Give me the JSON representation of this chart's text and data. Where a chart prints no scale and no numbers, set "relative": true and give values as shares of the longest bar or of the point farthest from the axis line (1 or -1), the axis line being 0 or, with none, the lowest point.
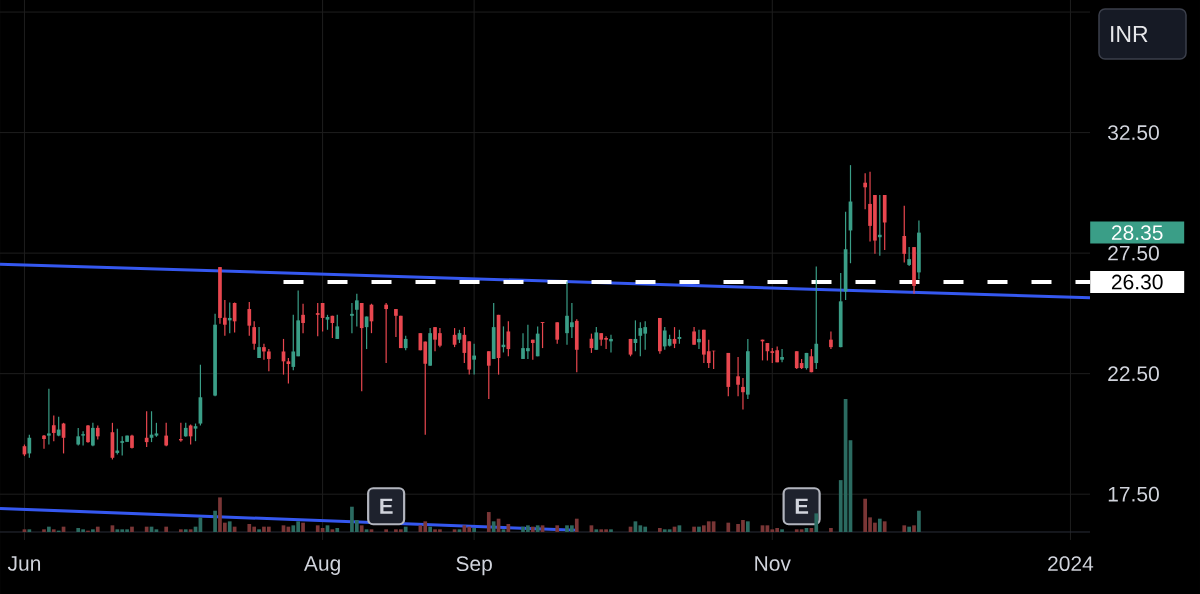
{
  "chart_data": [
    {
      "type": "candlestick",
      "x": [
        "2023-06-01",
        "2023-06-02",
        "2023-06-05",
        "2023-06-06",
        "2023-06-07",
        "2023-06-08",
        "2023-06-09",
        "2023-06-12",
        "2023-06-13",
        "2023-06-14",
        "2023-06-15",
        "2023-06-16",
        "2023-06-19",
        "2023-06-20",
        "2023-06-21",
        "2023-06-22",
        "2023-06-23",
        "2023-06-26",
        "2023-06-27",
        "2023-06-28",
        "2023-06-30",
        "2023-07-03",
        "2023-07-04",
        "2023-07-05",
        "2023-07-06",
        "2023-07-07",
        "2023-07-10",
        "2023-07-11",
        "2023-07-12",
        "2023-07-13",
        "2023-07-14",
        "2023-07-17",
        "2023-07-18",
        "2023-07-19",
        "2023-07-20",
        "2023-07-21",
        "2023-07-24",
        "2023-07-25",
        "2023-07-26",
        "2023-07-27",
        "2023-07-28",
        "2023-07-31",
        "2023-08-01",
        "2023-08-02",
        "2023-08-03",
        "2023-08-04",
        "2023-08-07",
        "2023-08-08",
        "2023-08-09",
        "2023-08-10",
        "2023-08-11",
        "2023-08-14",
        "2023-08-16",
        "2023-08-17",
        "2023-08-18",
        "2023-08-21",
        "2023-08-22",
        "2023-08-23",
        "2023-08-24",
        "2023-08-25",
        "2023-08-28",
        "2023-08-29",
        "2023-08-30",
        "2023-08-31",
        "2023-09-01",
        "2023-09-04",
        "2023-09-05",
        "2023-09-06",
        "2023-09-07",
        "2023-09-08",
        "2023-09-11",
        "2023-09-12",
        "2023-09-13",
        "2023-09-14",
        "2023-09-15",
        "2023-09-18",
        "2023-09-20",
        "2023-09-21",
        "2023-09-22",
        "2023-09-25",
        "2023-09-26",
        "2023-09-27",
        "2023-09-28",
        "2023-09-29",
        "2023-10-03",
        "2023-10-04",
        "2023-10-05",
        "2023-10-06",
        "2023-10-09",
        "2023-10-10",
        "2023-10-11",
        "2023-10-12",
        "2023-10-13",
        "2023-10-16",
        "2023-10-17",
        "2023-10-18",
        "2023-10-19",
        "2023-10-20",
        "2023-10-23",
        "2023-10-25",
        "2023-10-26",
        "2023-10-27",
        "2023-10-30",
        "2023-10-31",
        "2023-11-01",
        "2023-11-02",
        "2023-11-03",
        "2023-11-06",
        "2023-11-07",
        "2023-11-08",
        "2023-11-09",
        "2023-11-10",
        "2023-11-13",
        "2023-11-15",
        "2023-11-16",
        "2023-11-17",
        "2023-11-20",
        "2023-11-21",
        "2023-11-22",
        "2023-11-23",
        "2023-11-24",
        "2023-11-28",
        "2023-11-29",
        "2023-11-30",
        "2023-12-01"
      ],
      "ohlc": [
        [
          19.49,
          19.56,
          19.08,
          19.15
        ],
        [
          19.19,
          19.97,
          19.01,
          19.84
        ],
        [
          19.93,
          19.96,
          19.38,
          19.79
        ],
        [
          19.93,
          21.87,
          19.56,
          20.02
        ],
        [
          20.36,
          20.76,
          19.7,
          20.04
        ],
        [
          19.93,
          20.71,
          19.9,
          20.18
        ],
        [
          20.43,
          20.46,
          19.19,
          19.84
        ],
        [
          19.56,
          20.25,
          19.52,
          19.9
        ],
        [
          19.93,
          20.11,
          19.52,
          19.99
        ],
        [
          20.35,
          20.37,
          19.63,
          19.66
        ],
        [
          19.52,
          20.46,
          19.49,
          20.25
        ],
        [
          20.25,
          20.35,
          19.77,
          19.9
        ],
        [
          20.07,
          20.46,
          18.94,
          19.01
        ],
        [
          19.21,
          20.21,
          19.15,
          19.31
        ],
        [
          19.63,
          19.9,
          19.1,
          19.7
        ],
        [
          19.67,
          19.93,
          19.67,
          19.93
        ],
        [
          19.93,
          19.97,
          19.39,
          19.42
        ],
        [
          19.84,
          20.94,
          19.46,
          19.66
        ],
        [
          19.84,
          20.94,
          19.66,
          19.97
        ],
        [
          19.93,
          20.46,
          19.88,
          20.02
        ],
        [
          19.93,
          20.46,
          19.49,
          19.52
        ],
        [
          19.79,
          20.46,
          19.67,
          19.73
        ],
        [
          19.9,
          20.46,
          19.88,
          20.25
        ],
        [
          20.35,
          20.39,
          19.56,
          19.9
        ],
        [
          20.22,
          20.43,
          19.7,
          20.32
        ],
        [
          20.43,
          22.87,
          20.35,
          21.52
        ],
        [
          21.59,
          24.98,
          21.56,
          24.53
        ],
        [
          26.92,
          26.92,
          24.57,
          24.81
        ],
        [
          24.82,
          25.56,
          24.07,
          24.53
        ],
        [
          24.71,
          25.45,
          24.18,
          24.81
        ],
        [
          25.43,
          25.45,
          24.21,
          24.67
        ],
        [
          25.18,
          25.47,
          24.07,
          24.49
        ],
        [
          24.43,
          24.67,
          23.49,
          23.74
        ],
        [
          23.15,
          24.43,
          23.15,
          23.6
        ],
        [
          23.6,
          23.74,
          23.08,
          23.42
        ],
        [
          23.42,
          23.52,
          22.6,
          23.11
        ],
        [
          23.42,
          23.94,
          22.46,
          23.01
        ],
        [
          23.01,
          23.15,
          22.09,
          22.9
        ],
        [
          22.78,
          24.94,
          22.64,
          23.42
        ],
        [
          23.22,
          25.95,
          23.22,
          24.71
        ],
        [
          24.94,
          25.4,
          24.18,
          24.6
        ],
        [
          25.01,
          25.43,
          24.05,
          24.94
        ],
        [
          25.43,
          25.43,
          24.25,
          24.81
        ],
        [
          24.74,
          24.94,
          24.32,
          24.85
        ],
        [
          24.9,
          24.9,
          23.98,
          24.6
        ],
        [
          23.94,
          24.94,
          23.94,
          24.46
        ],
        [
          24.9,
          25.43,
          24.18,
          24.98
        ],
        [
          25.15,
          25.81,
          24.46,
          25.54
        ],
        [
          25.43,
          25.43,
          21.77,
          24.39
        ],
        [
          24.43,
          24.87,
          23.52,
          24.87
        ],
        [
          25.36,
          25.4,
          24.18,
          24.67
        ],
        [
          25.36,
          25.43,
          22.94,
          25.18
        ],
        [
          25.18,
          25.18,
          24.02,
          24.9
        ],
        [
          24.9,
          24.9,
          23.56,
          23.56
        ],
        [
          23.56,
          24.07,
          23.47,
          23.94
        ],
        [
          24.18,
          24.18,
          23.47,
          23.47
        ],
        [
          23.83,
          23.83,
          19.97,
          22.91
        ],
        [
          22.83,
          24.39,
          22.83,
          24.18
        ],
        [
          24.43,
          24.43,
          23.43,
          23.91
        ],
        [
          24.18,
          24.39,
          23.6,
          23.66
        ],
        [
          24.11,
          24.39,
          23.6,
          23.7
        ],
        [
          23.91,
          24.32,
          23.77,
          24.18
        ],
        [
          24.11,
          24.43,
          22.94,
          23.36
        ],
        [
          23.84,
          23.84,
          22.46,
          22.67
        ],
        [
          23.08,
          23.74,
          22.46,
          23.25
        ],
        [
          23.43,
          23.43,
          21.45,
          22.83
        ],
        [
          23.11,
          25.43,
          23.11,
          24.43
        ],
        [
          24.94,
          24.94,
          22.46,
          23.15
        ],
        [
          23.6,
          24.46,
          23.38,
          23.7
        ],
        [
          24.25,
          24.67,
          23.22,
          23.52
        ],
        [
          23.11,
          24.18,
          23.11,
          23.56
        ],
        [
          23.43,
          24.53,
          23.11,
          23.56
        ],
        [
          23.91,
          23.91,
          23.08,
          23.77
        ],
        [
          23.22,
          24.46,
          23.22,
          24.16
        ],
        [
          24.64,
          24.64,
          23.56,
          24.6
        ],
        [
          24.63,
          24.63,
          23.74,
          23.91
        ],
        [
          24.18,
          26.32,
          23.7,
          24.9
        ],
        [
          24.43,
          25.43,
          23.98,
          24.63
        ],
        [
          24.69,
          24.76,
          22.56,
          23.49
        ],
        [
          23.95,
          24.16,
          23.36,
          23.56
        ],
        [
          23.49,
          24.43,
          23.49,
          24.21
        ],
        [
          24.18,
          24.18,
          23.66,
          23.91
        ],
        [
          23.98,
          24.05,
          23.52,
          23.91
        ],
        [
          23.84,
          24.11,
          23.38,
          23.94
        ],
        [
          23.94,
          23.94,
          23.22,
          23.29
        ],
        [
          23.77,
          24.71,
          23.43,
          23.94
        ],
        [
          24.07,
          24.63,
          23.22,
          24.39
        ],
        [
          24.16,
          24.67,
          23.49,
          24.43
        ],
        [
          24.81,
          24.81,
          23.33,
          23.43
        ],
        [
          23.63,
          24.43,
          23.49,
          24.29
        ],
        [
          23.66,
          24.11,
          23.63,
          23.94
        ],
        [
          23.94,
          24.43,
          23.56,
          23.74
        ],
        [
          23.94,
          24.32,
          23.74,
          24.02
        ],
        [
          24.25,
          24.43,
          23.7,
          23.7
        ],
        [
          23.8,
          24.32,
          23.52,
          23.94
        ],
        [
          24.32,
          24.32,
          22.94,
          23.29
        ],
        [
          23.43,
          23.91,
          22.73,
          22.94
        ],
        [
          23.45,
          23.45,
          22.69,
          23.43
        ],
        [
          23.36,
          23.36,
          21.56,
          21.95
        ],
        [
          22.39,
          23.19,
          21.56,
          22.04
        ],
        [
          21.95,
          22.32,
          21.01,
          21.73
        ],
        [
          21.63,
          23.94,
          21.45,
          23.43
        ],
        [
          23.91,
          23.91,
          23.05,
          23.84
        ],
        [
          23.77,
          23.77,
          23.05,
          23.43
        ],
        [
          23.43,
          23.56,
          22.94,
          23.36
        ],
        [
          23.47,
          23.63,
          22.97,
          22.97
        ],
        [
          23.08,
          23.52,
          22.97,
          23.19
        ],
        [
          23.43,
          23.43,
          22.69,
          22.73
        ],
        [
          22.94,
          23.11,
          22.69,
          22.73
        ],
        [
          22.73,
          23.36,
          22.67,
          23.36
        ],
        [
          23.22,
          23.52,
          22.56,
          22.56
        ],
        [
          22.94,
          26.94,
          22.69,
          23.74
        ],
        [
          23.91,
          24.25,
          23.52,
          23.6
        ],
        [
          23.6,
          26.67,
          23.6,
          25.5
        ],
        [
          25.91,
          29.22,
          25.56,
          27.66
        ],
        [
          28.44,
          31.15,
          27.08,
          29.64
        ],
        [
          30.42,
          30.81,
          29.32,
          30.23
        ],
        [
          29.54,
          30.88,
          27.98,
          28.63
        ],
        [
          29.91,
          29.91,
          27.47,
          28.02
        ],
        [
          28.16,
          29.91,
          27.39,
          28.26
        ],
        [
          29.91,
          29.91,
          27.63,
          28.77
        ],
        [
          28.21,
          29.46,
          27.11,
          27.47
        ],
        [
          27.01,
          27.75,
          26.97,
          27.25
        ],
        [
          27.75,
          27.75,
          25.81,
          26.14
        ],
        [
          26.7,
          28.85,
          26.42,
          28.35
        ]
      ],
      "colors": [
        "#e8474f",
        "#3a9e87",
        "#e8474f",
        "#3a9e87",
        "#e8474f",
        "#3a9e87",
        "#e8474f",
        "#3a9e87",
        "#3a9e87",
        "#e8474f",
        "#3a9e87",
        "#e8474f",
        "#e8474f",
        "#3a9e87",
        "#3a9e87",
        "#3a9e87",
        "#e8474f",
        "#e8474f",
        "#3a9e87",
        "#3a9e87",
        "#e8474f",
        "#e8474f",
        "#3a9e87",
        "#e8474f",
        "#3a9e87",
        "#3a9e87",
        "#3a9e87",
        "#e8474f",
        "#e8474f",
        "#3a9e87",
        "#e8474f",
        "#e8474f",
        "#e8474f",
        "#3a9e87",
        "#e8474f",
        "#e8474f",
        "#e8474f",
        "#e8474f",
        "#3a9e87",
        "#3a9e87",
        "#e8474f",
        "#e8474f",
        "#e8474f",
        "#3a9e87",
        "#e8474f",
        "#3a9e87",
        "#3a9e87",
        "#3a9e87",
        "#e8474f",
        "#3a9e87",
        "#e8474f",
        "#e8474f",
        "#e8474f",
        "#e8474f",
        "#3a9e87",
        "#e8474f",
        "#e8474f",
        "#3a9e87",
        "#e8474f",
        "#e8474f",
        "#e8474f",
        "#3a9e87",
        "#e8474f",
        "#e8474f",
        "#3a9e87",
        "#e8474f",
        "#3a9e87",
        "#e8474f",
        "#3a9e87",
        "#e8474f",
        "#3a9e87",
        "#3a9e87",
        "#e8474f",
        "#3a9e87",
        "#e8474f",
        "#e8474f",
        "#3a9e87",
        "#3a9e87",
        "#e8474f",
        "#e8474f",
        "#3a9e87",
        "#e8474f",
        "#e8474f",
        "#3a9e87",
        "#e8474f",
        "#3a9e87",
        "#3a9e87",
        "#3a9e87",
        "#e8474f",
        "#3a9e87",
        "#3a9e87",
        "#e8474f",
        "#3a9e87",
        "#e8474f",
        "#3a9e87",
        "#e8474f",
        "#e8474f",
        "#e8474f",
        "#e8474f",
        "#e8474f",
        "#e8474f",
        "#3a9e87",
        "#e8474f",
        "#e8474f",
        "#e8474f",
        "#e8474f",
        "#3a9e87",
        "#e8474f",
        "#e8474f",
        "#3a9e87",
        "#e8474f",
        "#3a9e87",
        "#e8474f",
        "#3a9e87",
        "#3a9e87",
        "#3a9e87",
        "#e8474f",
        "#e8474f",
        "#e8474f",
        "#3a9e87",
        "#e8474f",
        "#e8474f",
        "#3a9e87",
        "#e8474f",
        "#3a9e87"
      ],
      "series": [
        {
          "type": "line",
          "x": [
            "2023-05-27",
            "2024-01-05"
          ],
          "values": [
            27.04,
            25.65
          ],
          "color": "#3558f0"
        },
        {
          "type": "line",
          "x": [
            "2023-05-27",
            "2023-09-22"
          ],
          "values": [
            16.91,
            16.0
          ],
          "color": "#3558f0"
        },
        {
          "type": "line",
          "x": [
            "2023-07-24",
            "2024-01-05"
          ],
          "values": [
            26.3,
            26.3
          ],
          "color": "#ffffff",
          "line_style": "dashed"
        }
      ],
      "xlim": [
        "2023-05-27",
        "2024-01-05"
      ],
      "ylim": [
        15.6,
        38
      ],
      "xticks": [
        {
          "value": "2023-06-01",
          "label": "Jun"
        },
        {
          "value": "2023-08-01",
          "label": "Aug"
        },
        {
          "value": "2023-09-01",
          "label": "Sep"
        },
        {
          "value": "2023-11-01",
          "label": "Nov"
        },
        {
          "value": "2024-01-01",
          "label": "2024"
        }
      ],
      "yticks": [
        {
          "value": 17.5,
          "label": "17.50"
        },
        {
          "value": 22.5,
          "label": "22.50"
        },
        {
          "value": 26.3,
          "label": "26.30"
        },
        {
          "value": 27.5,
          "label": "27.50"
        },
        {
          "value": 28.35,
          "label": "28.35"
        },
        {
          "value": 32.5,
          "label": "32.50"
        },
        {
          "value": 37.5,
          "label": null
        }
      ],
      "grid": true,
      "annotations": [
        {
          "text": "E",
          "x": "2023-08-14",
          "y": 17
        },
        {
          "text": "E",
          "x": "2023-11-07",
          "y": 17
        },
        "INR"
      ]
    },
    {
      "type": "bar",
      "relative": true,
      "x": [
        "2023-06-01",
        "2023-06-02",
        "2023-06-05",
        "2023-06-06",
        "2023-06-07",
        "2023-06-08",
        "2023-06-09",
        "2023-06-12",
        "2023-06-13",
        "2023-06-14",
        "2023-06-15",
        "2023-06-16",
        "2023-06-19",
        "2023-06-20",
        "2023-06-21",
        "2023-06-22",
        "2023-06-23",
        "2023-06-26",
        "2023-06-27",
        "2023-06-28",
        "2023-06-30",
        "2023-07-03",
        "2023-07-04",
        "2023-07-05",
        "2023-07-06",
        "2023-07-07",
        "2023-07-10",
        "2023-07-11",
        "2023-07-12",
        "2023-07-13",
        "2023-07-14",
        "2023-07-17",
        "2023-07-18",
        "2023-07-19",
        "2023-07-20",
        "2023-07-21",
        "2023-07-24",
        "2023-07-25",
        "2023-07-26",
        "2023-07-27",
        "2023-07-28",
        "2023-07-31",
        "2023-08-01",
        "2023-08-02",
        "2023-08-03",
        "2023-08-04",
        "2023-08-07",
        "2023-08-08",
        "2023-08-09",
        "2023-08-10",
        "2023-08-11",
        "2023-08-14",
        "2023-08-16",
        "2023-08-17",
        "2023-08-18",
        "2023-08-21",
        "2023-08-22",
        "2023-08-23",
        "2023-08-24",
        "2023-08-25",
        "2023-08-28",
        "2023-08-29",
        "2023-08-30",
        "2023-08-31",
        "2023-09-01",
        "2023-09-04",
        "2023-09-05",
        "2023-09-06",
        "2023-09-07",
        "2023-09-08",
        "2023-09-11",
        "2023-09-12",
        "2023-09-13",
        "2023-09-14",
        "2023-09-15",
        "2023-09-18",
        "2023-09-20",
        "2023-09-21",
        "2023-09-22",
        "2023-09-25",
        "2023-09-26",
        "2023-09-27",
        "2023-09-28",
        "2023-09-29",
        "2023-10-03",
        "2023-10-04",
        "2023-10-05",
        "2023-10-06",
        "2023-10-09",
        "2023-10-10",
        "2023-10-11",
        "2023-10-12",
        "2023-10-13",
        "2023-10-16",
        "2023-10-17",
        "2023-10-18",
        "2023-10-19",
        "2023-10-20",
        "2023-10-23",
        "2023-10-25",
        "2023-10-26",
        "2023-10-27",
        "2023-10-30",
        "2023-10-31",
        "2023-11-01",
        "2023-11-02",
        "2023-11-03",
        "2023-11-06",
        "2023-11-07",
        "2023-11-08",
        "2023-11-09",
        "2023-11-10",
        "2023-11-13",
        "2023-11-15",
        "2023-11-16",
        "2023-11-17",
        "2023-11-20",
        "2023-11-21",
        "2023-11-22",
        "2023-11-23",
        "2023-11-24",
        "2023-11-28",
        "2023-11-29",
        "2023-11-30",
        "2023-12-01"
      ],
      "values": [
        0.02,
        0.02,
        0.02,
        0.04,
        0.02,
        0.01,
        0.04,
        0.03,
        0.02,
        0.01,
        0.02,
        0.04,
        0.05,
        0.02,
        0.02,
        0.02,
        0.04,
        0.04,
        0.04,
        0.02,
        0.04,
        0.02,
        0.02,
        0.02,
        0.04,
        0.11,
        0.16,
        0.26,
        0.07,
        0.08,
        0.04,
        0.06,
        0.04,
        0.02,
        0.04,
        0.04,
        0.05,
        0.04,
        0.05,
        0.08,
        0.07,
        0.05,
        0.03,
        0.05,
        0.02,
        0.03,
        0.19,
        0.09,
        0.05,
        0.02,
        0.02,
        0.02,
        0.02,
        0.02,
        0.04,
        0.05,
        0.08,
        0.04,
        0.02,
        0.02,
        0.02,
        0.02,
        0.05,
        0.04,
        0.03,
        0.15,
        0.08,
        0.1,
        0.02,
        0.06,
        0.04,
        0.05,
        0.04,
        0.05,
        0.05,
        0.05,
        0.05,
        0.05,
        0.1,
        0.05,
        0.02,
        0.02,
        0.02,
        0.02,
        0.04,
        0.08,
        0.05,
        0.04,
        0.03,
        0.02,
        0.02,
        0.04,
        0.05,
        0.04,
        0.04,
        0.05,
        0.08,
        0.08,
        0.07,
        0.06,
        0.09,
        0.08,
        0.05,
        0.05,
        0.02,
        0.03,
        0.02,
        0.02,
        0.02,
        0.03,
        0.03,
        0.14,
        0.03,
        0.39,
        1,
        0.69,
        0.25,
        0.11,
        0.07,
        0.1,
        0.08,
        0.05,
        0.04,
        0.05,
        0.16
      ],
      "colors": [
        "#7a3636",
        "#2b6b61",
        "#7a3636",
        "#2b6b61",
        "#7a3636",
        "#2b6b61",
        "#7a3636",
        "#2b6b61",
        "#2b6b61",
        "#7a3636",
        "#2b6b61",
        "#7a3636",
        "#7a3636",
        "#2b6b61",
        "#2b6b61",
        "#2b6b61",
        "#7a3636",
        "#7a3636",
        "#2b6b61",
        "#2b6b61",
        "#7a3636",
        "#7a3636",
        "#2b6b61",
        "#7a3636",
        "#2b6b61",
        "#2b6b61",
        "#2b6b61",
        "#7a3636",
        "#7a3636",
        "#2b6b61",
        "#7a3636",
        "#7a3636",
        "#7a3636",
        "#2b6b61",
        "#7a3636",
        "#7a3636",
        "#7a3636",
        "#7a3636",
        "#2b6b61",
        "#2b6b61",
        "#7a3636",
        "#7a3636",
        "#7a3636",
        "#2b6b61",
        "#7a3636",
        "#2b6b61",
        "#2b6b61",
        "#2b6b61",
        "#7a3636",
        "#2b6b61",
        "#7a3636",
        "#7a3636",
        "#7a3636",
        "#7a3636",
        "#2b6b61",
        "#7a3636",
        "#7a3636",
        "#2b6b61",
        "#7a3636",
        "#7a3636",
        "#7a3636",
        "#2b6b61",
        "#7a3636",
        "#7a3636",
        "#2b6b61",
        "#7a3636",
        "#2b6b61",
        "#7a3636",
        "#2b6b61",
        "#7a3636",
        "#2b6b61",
        "#2b6b61",
        "#7a3636",
        "#2b6b61",
        "#7a3636",
        "#7a3636",
        "#2b6b61",
        "#2b6b61",
        "#7a3636",
        "#7a3636",
        "#2b6b61",
        "#7a3636",
        "#7a3636",
        "#2b6b61",
        "#7a3636",
        "#2b6b61",
        "#2b6b61",
        "#2b6b61",
        "#7a3636",
        "#2b6b61",
        "#2b6b61",
        "#7a3636",
        "#2b6b61",
        "#7a3636",
        "#2b6b61",
        "#7a3636",
        "#7a3636",
        "#7a3636",
        "#7a3636",
        "#7a3636",
        "#7a3636",
        "#2b6b61",
        "#7a3636",
        "#7a3636",
        "#7a3636",
        "#7a3636",
        "#2b6b61",
        "#7a3636",
        "#7a3636",
        "#2b6b61",
        "#7a3636",
        "#2b6b61",
        "#7a3636",
        "#2b6b61",
        "#2b6b61",
        "#2b6b61",
        "#7a3636",
        "#7a3636",
        "#7a3636",
        "#2b6b61",
        "#7a3636",
        "#7a3636",
        "#2b6b61",
        "#7a3636",
        "#2b6b61"
      ],
      "xlim": [
        "2023-05-27",
        "2024-01-05"
      ],
      "tick_labels": false
    }
  ]
}
